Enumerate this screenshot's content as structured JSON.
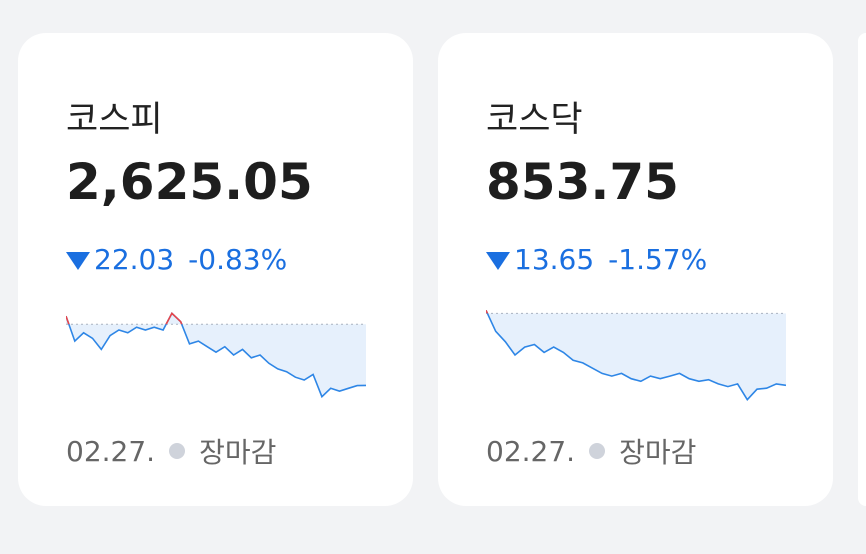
{
  "cards": [
    {
      "title": "코스피",
      "value": "2,625.05",
      "change": "22.03",
      "change_pct": "-0.83%",
      "date": "02.27.",
      "status": "장마감",
      "sparkline": {
        "ylim": [
          2618,
          2654
        ],
        "reference": 2647.08,
        "values": [
          2650,
          2641,
          2644,
          2642,
          2638,
          2643,
          2645,
          2644,
          2646,
          2645,
          2646,
          2645,
          2651,
          2648,
          2640,
          2641,
          2639,
          2637,
          2639,
          2636,
          2638,
          2635,
          2636,
          2633,
          2631,
          2630,
          2628,
          2627,
          2629,
          2621,
          2624,
          2623,
          2624,
          2625,
          2625.05
        ]
      }
    },
    {
      "title": "코스닥",
      "value": "853.75",
      "change": "13.65",
      "change_pct": "-1.57%",
      "date": "02.27.",
      "status": "장마감",
      "sparkline": {
        "ylim": [
          850,
          869
        ],
        "reference": 867.4,
        "values": [
          868,
          864,
          862,
          859.5,
          861,
          861.5,
          860,
          861,
          860,
          858.5,
          858,
          857,
          856,
          855.5,
          856,
          855,
          854.5,
          855.5,
          855,
          855.5,
          856,
          855,
          854.5,
          854.8,
          854,
          853.5,
          854,
          851,
          853,
          853.2,
          854,
          853.75
        ]
      }
    }
  ]
}
